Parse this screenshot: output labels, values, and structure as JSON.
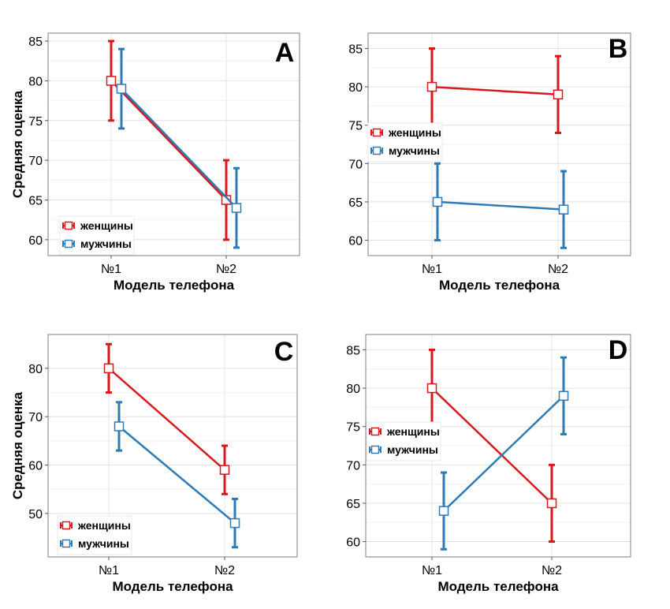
{
  "figure": {
    "colors": {
      "женщины": "#d7191c",
      "мужчины": "#2c7bb6"
    }
  },
  "chart_data": [
    {
      "type": "line",
      "panel_label": "A",
      "categories": [
        "№1",
        "№2"
      ],
      "xlabel": "Модель телефона",
      "ylabel": "Средняя оценка",
      "ylim": [
        58,
        86
      ],
      "yticks": [
        60,
        65,
        70,
        75,
        80,
        85
      ],
      "grid": true,
      "legend_position": "bottom-left",
      "series": [
        {
          "name": "женщины",
          "values": [
            80,
            65
          ],
          "lower": [
            75,
            60
          ],
          "upper": [
            85,
            70
          ]
        },
        {
          "name": "мужчины",
          "values": [
            79,
            64
          ],
          "lower": [
            74,
            59
          ],
          "upper": [
            84,
            69
          ]
        }
      ]
    },
    {
      "type": "line",
      "panel_label": "B",
      "categories": [
        "№1",
        "№2"
      ],
      "xlabel": "Модель телефона",
      "ylabel": "",
      "ylim": [
        58,
        87
      ],
      "yticks": [
        60,
        65,
        70,
        75,
        80,
        85
      ],
      "grid": true,
      "legend_position": "middle-left",
      "series": [
        {
          "name": "женщины",
          "values": [
            80,
            79
          ],
          "lower": [
            75,
            74
          ],
          "upper": [
            85,
            84
          ]
        },
        {
          "name": "мужчины",
          "values": [
            65,
            64
          ],
          "lower": [
            60,
            59
          ],
          "upper": [
            70,
            69
          ]
        }
      ]
    },
    {
      "type": "line",
      "panel_label": "C",
      "categories": [
        "№1",
        "№2"
      ],
      "xlabel": "Модель телефона",
      "ylabel": "Средняя оценка",
      "ylim": [
        41,
        87
      ],
      "yticks": [
        50,
        60,
        70,
        80
      ],
      "grid": true,
      "legend_position": "bottom-left",
      "series": [
        {
          "name": "женщины",
          "values": [
            80,
            59
          ],
          "lower": [
            75,
            54
          ],
          "upper": [
            85,
            64
          ]
        },
        {
          "name": "мужчины",
          "values": [
            68,
            48
          ],
          "lower": [
            63,
            43
          ],
          "upper": [
            73,
            53
          ]
        }
      ]
    },
    {
      "type": "line",
      "panel_label": "D",
      "categories": [
        "№1",
        "№2"
      ],
      "xlabel": "Модель телефона",
      "ylabel": "",
      "ylim": [
        58,
        87
      ],
      "yticks": [
        60,
        65,
        70,
        75,
        80,
        85
      ],
      "grid": true,
      "legend_position": "middle-left",
      "series": [
        {
          "name": "женщины",
          "values": [
            80,
            65
          ],
          "lower": [
            75,
            60
          ],
          "upper": [
            85,
            70
          ]
        },
        {
          "name": "мужчины",
          "values": [
            64,
            79
          ],
          "lower": [
            59,
            74
          ],
          "upper": [
            69,
            84
          ]
        }
      ]
    }
  ]
}
